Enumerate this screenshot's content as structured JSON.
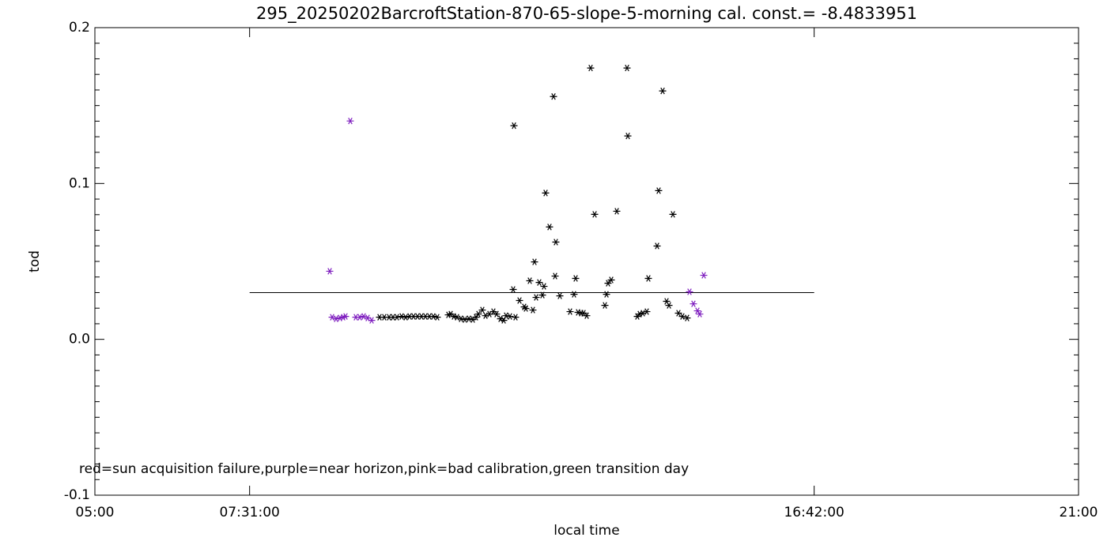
{
  "chart_data": {
    "type": "scatter",
    "title": "295_20250202BarcroftStation-870-65-slope-5-morning cal. const.= -8.4833951",
    "x_label": "local time",
    "y_label": "tod",
    "annotation": "red=sun acquisition failure,purple=near horizon,pink=bad calibration,green transition day",
    "xlim": [
      5,
      21
    ],
    "ylim": [
      -0.1,
      0.2
    ],
    "xticks": [
      {
        "value": 5,
        "label": "05:00"
      },
      {
        "value": 7.5167,
        "label": "07:31:00"
      },
      {
        "value": 16.7,
        "label": "16:42:00"
      },
      {
        "value": 21,
        "label": "21:00"
      }
    ],
    "yticks": [
      -0.1,
      {
        "value": 0,
        "label": "0.0"
      },
      0.1,
      0.2
    ],
    "yminorticks": [
      -0.09,
      -0.08,
      -0.07,
      -0.06,
      -0.05,
      -0.04,
      -0.03,
      -0.02,
      -0.01,
      0.01,
      0.02,
      0.03,
      0.04,
      0.05,
      0.06,
      0.07,
      0.08,
      0.09,
      0.11,
      0.12,
      0.13,
      0.14,
      0.15,
      0.16,
      0.17,
      0.18,
      0.19
    ],
    "reference_line": {
      "x": [
        7.5167,
        16.7
      ],
      "y": [
        0.03,
        0.03
      ]
    },
    "series": [
      {
        "color": "#000000",
        "x": [
          9.63,
          9.707,
          9.785,
          9.849,
          9.913,
          9.99,
          10.055,
          10.119,
          10.183,
          10.248,
          10.312,
          10.376,
          10.441,
          10.505,
          10.569,
          10.749,
          10.788,
          10.839,
          10.891,
          10.955,
          11.019,
          11.084,
          11.148,
          11.199,
          11.238,
          11.302,
          11.354,
          11.418,
          11.482,
          11.534,
          11.598,
          11.65,
          11.688,
          11.752,
          11.804,
          11.817,
          11.842,
          11.907,
          11.984,
          12.01,
          12.074,
          12.125,
          12.151,
          12.177,
          12.228,
          12.28,
          12.305,
          12.331,
          12.395,
          12.46,
          12.486,
          12.498,
          12.563,
          12.73,
          12.794,
          12.82,
          12.859,
          12.91,
          12.949,
          13.0,
          13.064,
          13.129,
          13.296,
          13.322,
          13.347,
          13.399,
          13.489,
          13.656,
          13.669,
          13.823,
          13.862,
          13.913,
          13.977,
          14.003,
          14.145,
          14.17,
          14.235,
          14.299,
          14.338,
          14.402,
          14.492,
          14.556,
          14.633
        ],
        "values": [
          0.0142,
          0.0142,
          0.0142,
          0.0142,
          0.0142,
          0.0147,
          0.0142,
          0.0147,
          0.0147,
          0.0147,
          0.0147,
          0.0147,
          0.0147,
          0.0147,
          0.0142,
          0.0157,
          0.0162,
          0.0147,
          0.0142,
          0.0132,
          0.0127,
          0.0132,
          0.0127,
          0.0142,
          0.0162,
          0.0188,
          0.0152,
          0.0162,
          0.0178,
          0.0162,
          0.0132,
          0.0122,
          0.0152,
          0.0147,
          0.032,
          0.1371,
          0.0142,
          0.0249,
          0.0208,
          0.0198,
          0.0376,
          0.0188,
          0.0497,
          0.0269,
          0.0365,
          0.0284,
          0.034,
          0.0939,
          0.0721,
          0.1558,
          0.0406,
          0.0624,
          0.0279,
          0.0178,
          0.0289,
          0.0391,
          0.0173,
          0.0168,
          0.0168,
          0.0152,
          0.1741,
          0.0802,
          0.0218,
          0.0289,
          0.036,
          0.0381,
          0.0822,
          0.1741,
          0.1305,
          0.0147,
          0.0162,
          0.0168,
          0.0178,
          0.0391,
          0.0599,
          0.0954,
          0.1594,
          0.0244,
          0.0218,
          0.0802,
          0.0168,
          0.0147,
          0.0137
        ]
      },
      {
        "color": "#7f1fbf",
        "x": [
          8.82,
          8.859,
          8.923,
          8.987,
          9.039,
          9.077,
          9.154,
          9.244,
          9.309,
          9.373,
          9.437,
          9.502,
          14.672,
          14.736,
          14.801,
          14.839,
          14.904
        ],
        "values": [
          0.0437,
          0.0142,
          0.0132,
          0.0137,
          0.0142,
          0.0147,
          0.1401,
          0.0142,
          0.0142,
          0.0147,
          0.0137,
          0.0122,
          0.0305,
          0.0228,
          0.0183,
          0.0162,
          0.0411
        ]
      }
    ]
  }
}
